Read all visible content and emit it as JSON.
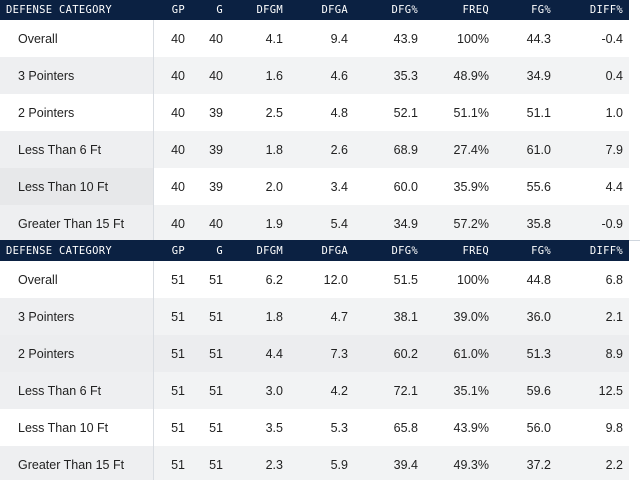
{
  "headers": [
    "DEFENSE CATEGORY",
    "GP",
    "G",
    "DFGM",
    "DFGA",
    "DFG%",
    "FREQ",
    "FG%",
    "DIFF%"
  ],
  "table1": {
    "rows": [
      {
        "category": "Overall",
        "gp": "40",
        "g": "40",
        "dfgm": "4.1",
        "dfga": "9.4",
        "dfgp": "43.9",
        "freq": "100%",
        "fgp": "44.3",
        "diff": "-0.4"
      },
      {
        "category": "3 Pointers",
        "gp": "40",
        "g": "40",
        "dfgm": "1.6",
        "dfga": "4.6",
        "dfgp": "35.3",
        "freq": "48.9%",
        "fgp": "34.9",
        "diff": "0.4"
      },
      {
        "category": "2 Pointers",
        "gp": "40",
        "g": "39",
        "dfgm": "2.5",
        "dfga": "4.8",
        "dfgp": "52.1",
        "freq": "51.1%",
        "fgp": "51.1",
        "diff": "1.0"
      },
      {
        "category": "Less Than 6 Ft",
        "gp": "40",
        "g": "39",
        "dfgm": "1.8",
        "dfga": "2.6",
        "dfgp": "68.9",
        "freq": "27.4%",
        "fgp": "61.0",
        "diff": "7.9"
      },
      {
        "category": "Less Than 10 Ft",
        "gp": "40",
        "g": "39",
        "dfgm": "2.0",
        "dfga": "3.4",
        "dfgp": "60.0",
        "freq": "35.9%",
        "fgp": "55.6",
        "diff": "4.4"
      },
      {
        "category": "Greater Than 15 Ft",
        "gp": "40",
        "g": "40",
        "dfgm": "1.9",
        "dfga": "5.4",
        "dfgp": "34.9",
        "freq": "57.2%",
        "fgp": "35.8",
        "diff": "-0.9"
      }
    ]
  },
  "table2": {
    "rows": [
      {
        "category": "Overall",
        "gp": "51",
        "g": "51",
        "dfgm": "6.2",
        "dfga": "12.0",
        "dfgp": "51.5",
        "freq": "100%",
        "fgp": "44.8",
        "diff": "6.8"
      },
      {
        "category": "3 Pointers",
        "gp": "51",
        "g": "51",
        "dfgm": "1.8",
        "dfga": "4.7",
        "dfgp": "38.1",
        "freq": "39.0%",
        "fgp": "36.0",
        "diff": "2.1"
      },
      {
        "category": "2 Pointers",
        "gp": "51",
        "g": "51",
        "dfgm": "4.4",
        "dfga": "7.3",
        "dfgp": "60.2",
        "freq": "61.0%",
        "fgp": "51.3",
        "diff": "8.9"
      },
      {
        "category": "Less Than 6 Ft",
        "gp": "51",
        "g": "51",
        "dfgm": "3.0",
        "dfga": "4.2",
        "dfgp": "72.1",
        "freq": "35.1%",
        "fgp": "59.6",
        "diff": "12.5"
      },
      {
        "category": "Less Than 10 Ft",
        "gp": "51",
        "g": "51",
        "dfgm": "3.5",
        "dfga": "5.3",
        "dfgp": "65.8",
        "freq": "43.9%",
        "fgp": "56.0",
        "diff": "9.8"
      },
      {
        "category": "Greater Than 15 Ft",
        "gp": "51",
        "g": "51",
        "dfgm": "2.3",
        "dfga": "5.9",
        "dfgp": "39.4",
        "freq": "49.3%",
        "fgp": "37.2",
        "diff": "2.2"
      }
    ]
  }
}
